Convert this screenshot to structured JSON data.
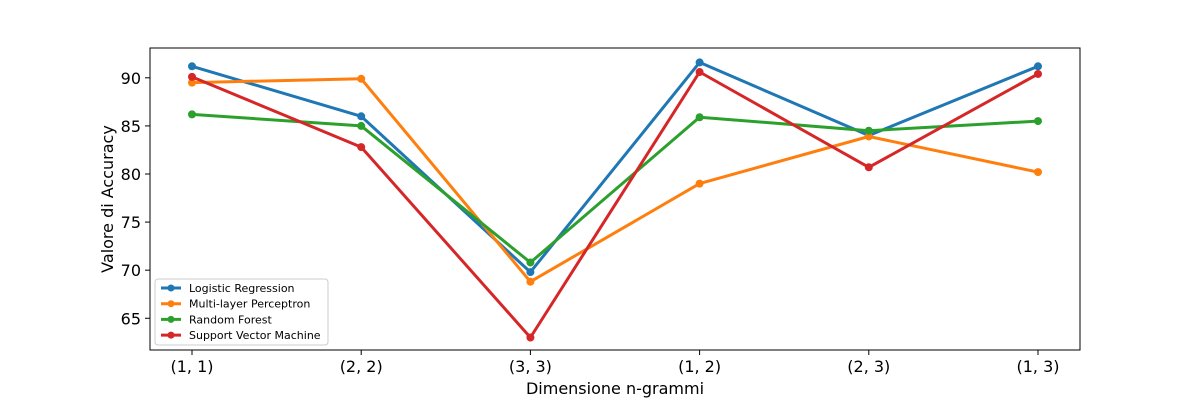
{
  "chart_data": {
    "type": "line",
    "title": "",
    "xlabel": "Dimensione n-grammi",
    "ylabel": "Valore di Accuracy",
    "categories": [
      "(1, 1)",
      "(2, 2)",
      "(3, 3)",
      "(1, 2)",
      "(2, 3)",
      "(1, 3)"
    ],
    "ylim": [
      61.7,
      93.1
    ],
    "yticks": [
      65,
      70,
      75,
      80,
      85,
      90
    ],
    "grid": false,
    "legend_position": "lower-left",
    "series": [
      {
        "name": "Logistic Regression",
        "color": "#1f77b4",
        "values": [
          91.2,
          86.0,
          69.8,
          91.6,
          84.0,
          91.2
        ]
      },
      {
        "name": "Multi-layer Perceptron",
        "color": "#ff7f0e",
        "values": [
          89.5,
          89.9,
          68.8,
          79.0,
          83.9,
          80.2
        ]
      },
      {
        "name": "Random Forest",
        "color": "#2ca02c",
        "values": [
          86.2,
          85.0,
          70.8,
          85.9,
          84.5,
          85.5
        ]
      },
      {
        "name": "Support Vector Machine",
        "color": "#d62728",
        "values": [
          90.1,
          82.8,
          63.0,
          90.6,
          80.7,
          90.4
        ]
      }
    ]
  }
}
